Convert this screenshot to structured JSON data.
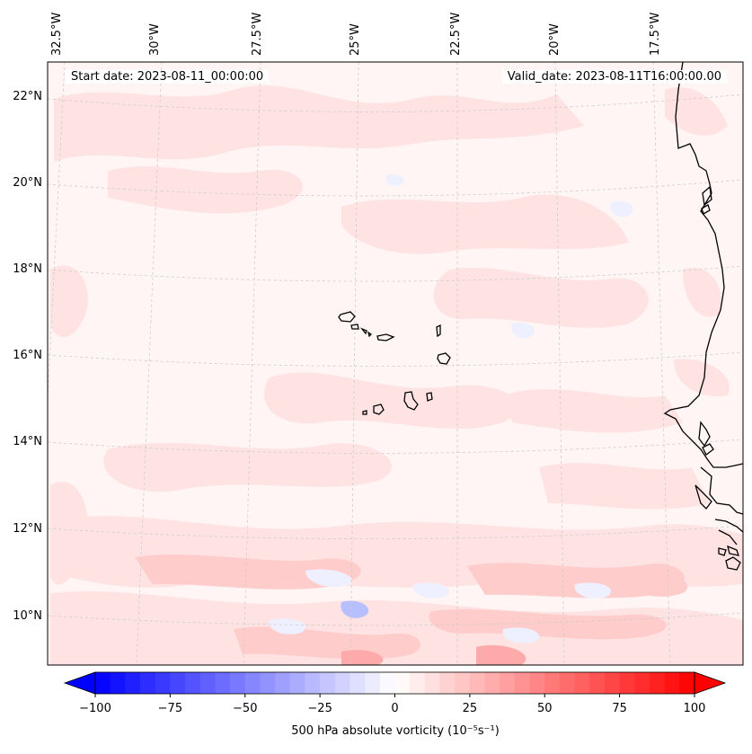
{
  "map": {
    "start_date_label": "Start date: 2023-08-11_00:00:00",
    "valid_date_label": "Valid_date: 2023-08-11T16:00:00.00",
    "lon_labels": [
      "32.5°W",
      "30°W",
      "27.5°W",
      "25°W",
      "22.5°W",
      "20°W",
      "17.5°W"
    ],
    "lat_labels": [
      "22°N",
      "20°N",
      "18°N",
      "16°N",
      "14°N",
      "12°N",
      "10°N"
    ],
    "field_colors": {
      "background": "#fff5f5",
      "light_red": "#ffe3e3",
      "mid_red": "#ffcccc",
      "light_blue": "#eef0ff",
      "mid_blue": "#b8bfff"
    },
    "coastline_color": "#000000",
    "gridline_color": "#cccccc"
  },
  "colorbar": {
    "title": "500 hPa absolute vorticity (10⁻⁵s⁻¹)",
    "min": -100,
    "max": 100,
    "step": 5,
    "tick_labels": [
      "−100",
      "−75",
      "−50",
      "−25",
      "0",
      "25",
      "50",
      "75",
      "100"
    ],
    "low_color": "#0000ff",
    "high_color": "#ff0000",
    "extend": "both"
  }
}
